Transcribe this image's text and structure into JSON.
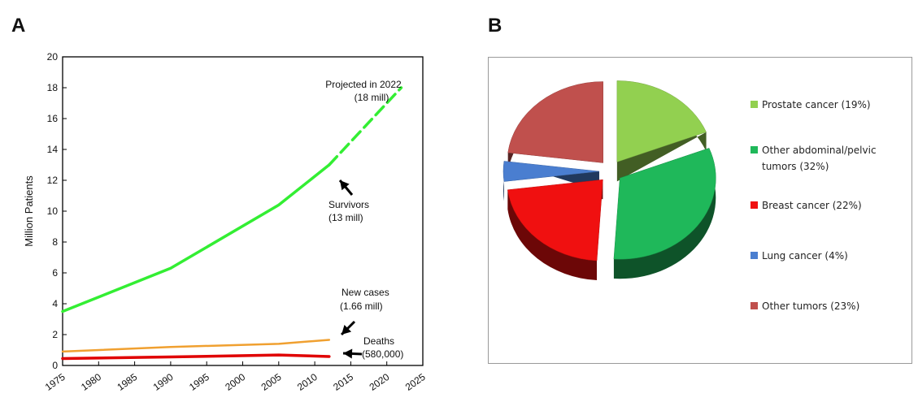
{
  "panels": {
    "a_label": "A",
    "b_label": "B"
  },
  "chart_data": [
    {
      "type": "line",
      "title": "",
      "xlabel": "",
      "ylabel": "Million Patients",
      "xlim": [
        1975,
        2025
      ],
      "ylim": [
        0,
        20
      ],
      "xticks": [
        1975,
        1980,
        1985,
        1990,
        1995,
        2000,
        2005,
        2010,
        2015,
        2020,
        2025
      ],
      "yticks": [
        0,
        2,
        4,
        6,
        8,
        10,
        12,
        14,
        16,
        18,
        20
      ],
      "grid": false,
      "series": [
        {
          "name": "Survivors",
          "color": "#33ee33",
          "x": [
            1975,
            1990,
            2005,
            2012
          ],
          "y": [
            3.5,
            6.3,
            10.4,
            13.0
          ]
        },
        {
          "name": "Projected in 2022",
          "color": "#33ee33",
          "dashed": true,
          "x": [
            2012,
            2022
          ],
          "y": [
            13.0,
            18.0
          ]
        },
        {
          "name": "New cases",
          "color": "#f0a030",
          "x": [
            1975,
            1990,
            2005,
            2012
          ],
          "y": [
            0.9,
            1.2,
            1.4,
            1.66
          ]
        },
        {
          "name": "Deaths",
          "color": "#e00000",
          "x": [
            1975,
            1990,
            2005,
            2012
          ],
          "y": [
            0.45,
            0.55,
            0.68,
            0.58
          ]
        }
      ],
      "annotations": [
        {
          "line1": "Projected in 2022",
          "line2": "(18 mill)"
        },
        {
          "line1": "Survivors",
          "line2": "(13 mill)"
        },
        {
          "line1": "New cases",
          "line2": "(1.66 mill)"
        },
        {
          "line1": "Deaths",
          "line2": "(580,000)"
        }
      ]
    },
    {
      "type": "pie",
      "title": "",
      "legend_position": "right",
      "slices": [
        {
          "label": "Prostate cancer (19%)",
          "value": 19,
          "color": "#92d050"
        },
        {
          "label": "Other abdominal/pelvic tumors (32%)",
          "legend_lines": [
            "Other abdominal/pelvic",
            "tumors (32%)"
          ],
          "value": 32,
          "color": "#1fb85a"
        },
        {
          "label": "Breast cancer (22%)",
          "value": 22,
          "color": "#f01010"
        },
        {
          "label": "Lung cancer (4%)",
          "value": 4,
          "color": "#4a7ed0"
        },
        {
          "label": "Other tumors (23%)",
          "value": 23,
          "color": "#c0504d"
        }
      ]
    }
  ]
}
